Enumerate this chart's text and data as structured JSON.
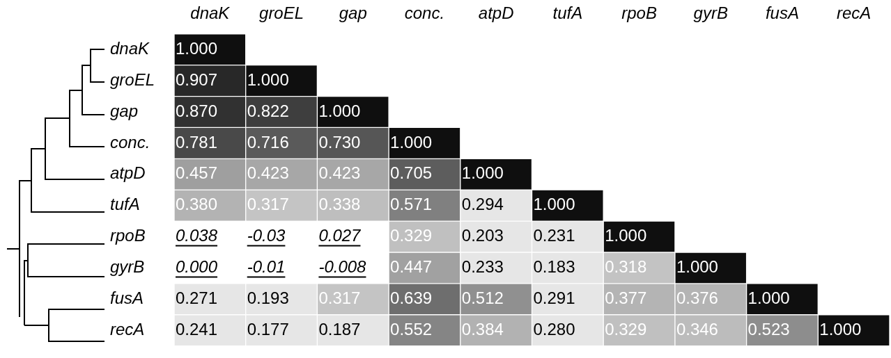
{
  "chart_data": {
    "type": "heatmap",
    "categories": [
      "dnaK",
      "groEL",
      "gap",
      "conc.",
      "atpD",
      "tufA",
      "rpoB",
      "gyrB",
      "fusA",
      "recA"
    ],
    "y_categories": [
      "dnaK",
      "groEL",
      "gap",
      "conc.",
      "atpD",
      "tufA",
      "rpoB",
      "gyrB",
      "fusA",
      "recA"
    ],
    "cells": [
      [
        1.0,
        null,
        null,
        null,
        null,
        null,
        null,
        null,
        null,
        null
      ],
      [
        0.907,
        1.0,
        null,
        null,
        null,
        null,
        null,
        null,
        null,
        null
      ],
      [
        0.87,
        0.822,
        1.0,
        null,
        null,
        null,
        null,
        null,
        null,
        null
      ],
      [
        0.781,
        0.716,
        0.73,
        1.0,
        null,
        null,
        null,
        null,
        null,
        null
      ],
      [
        0.457,
        0.423,
        0.423,
        0.705,
        1.0,
        null,
        null,
        null,
        null,
        null
      ],
      [
        0.38,
        0.317,
        0.338,
        0.571,
        0.294,
        1.0,
        null,
        null,
        null,
        null
      ],
      [
        0.038,
        -0.03,
        0.027,
        0.329,
        0.203,
        0.231,
        1.0,
        null,
        null,
        null
      ],
      [
        0.0,
        -0.01,
        -0.008,
        0.447,
        0.233,
        0.183,
        0.318,
        1.0,
        null,
        null
      ],
      [
        0.271,
        0.193,
        0.317,
        0.639,
        0.512,
        0.291,
        0.377,
        0.376,
        1.0,
        null
      ],
      [
        0.241,
        0.177,
        0.187,
        0.552,
        0.384,
        0.28,
        0.329,
        0.346,
        0.523,
        1.0
      ]
    ],
    "cell_labels": [
      [
        "1.000",
        null,
        null,
        null,
        null,
        null,
        null,
        null,
        null,
        null
      ],
      [
        "0.907",
        "1.000",
        null,
        null,
        null,
        null,
        null,
        null,
        null,
        null
      ],
      [
        "0.870",
        "0.822",
        "1.000",
        null,
        null,
        null,
        null,
        null,
        null,
        null
      ],
      [
        "0.781",
        "0.716",
        "0.730",
        "1.000",
        null,
        null,
        null,
        null,
        null,
        null
      ],
      [
        "0.457",
        "0.423",
        "0.423",
        "0.705",
        "1.000",
        null,
        null,
        null,
        null,
        null
      ],
      [
        "0.380",
        "0.317",
        "0.338",
        "0.571",
        "0.294",
        "1.000",
        null,
        null,
        null,
        null
      ],
      [
        "0.038",
        "-0.03",
        "0.027",
        "0.329",
        "0.203",
        "0.231",
        "1.000",
        null,
        null,
        null
      ],
      [
        "0.000",
        "-0.01",
        "-0.008",
        "0.447",
        "0.233",
        "0.183",
        "0.318",
        "1.000",
        null,
        null
      ],
      [
        "0.271",
        "0.193",
        "0.317",
        "0.639",
        "0.512",
        "0.291",
        "0.377",
        "0.376",
        "1.000",
        null
      ],
      [
        "0.241",
        "0.177",
        "0.187",
        "0.552",
        "0.384",
        "0.280",
        "0.329",
        "0.346",
        "0.523",
        "1.000"
      ]
    ]
  }
}
